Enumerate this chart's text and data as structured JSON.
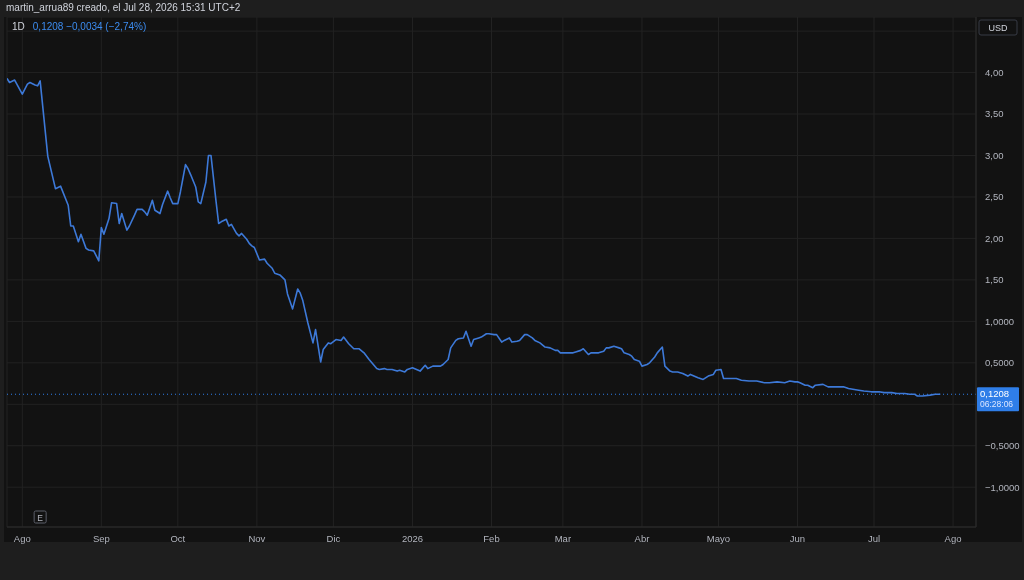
{
  "chart_data": {
    "type": "line",
    "title": "1D",
    "subtitle": "0,1208 −0,0034 (−2,74%)",
    "ylabel": "USD",
    "annotations": [
      "martin_arrua89 creado, el Jul 28, 2026 15:31 UTC+2",
      {
        "text": "E",
        "x": "2025-08-08"
      }
    ],
    "color": "#3d79d8",
    "marker": "none",
    "line_style": "solid",
    "grid": true,
    "xlim": [
      "2025-07-26",
      "2026-08-10"
    ],
    "xticks": [
      {
        "value": "2025-08-01",
        "label": "Ago"
      },
      {
        "value": "2025-09-01",
        "label": "Sep"
      },
      {
        "value": "2025-10-01",
        "label": "Oct"
      },
      {
        "value": "2025-11-01",
        "label": "Nov"
      },
      {
        "value": "2025-12-01",
        "label": "Dic"
      },
      {
        "value": "2026-01-01",
        "label": "2026"
      },
      {
        "value": "2026-02-01",
        "label": "Feb"
      },
      {
        "value": "2026-03-01",
        "label": "Mar"
      },
      {
        "value": "2026-04-01",
        "label": "Abr"
      },
      {
        "value": "2026-05-01",
        "label": "Mayo"
      },
      {
        "value": "2026-06-01",
        "label": "Jun"
      },
      {
        "value": "2026-07-01",
        "label": "Jul"
      },
      {
        "value": "2026-08-01",
        "label": "Ago"
      }
    ],
    "ylim": [
      -1.48,
      4.67
    ],
    "yticks": [
      {
        "value": 4.5,
        "label": null
      },
      {
        "value": 4,
        "label": "4,00"
      },
      {
        "value": 3.5,
        "label": "3,50"
      },
      {
        "value": 3,
        "label": "3,00"
      },
      {
        "value": 2.5,
        "label": "2,50"
      },
      {
        "value": 2,
        "label": "2,00"
      },
      {
        "value": 1.5,
        "label": "1,50"
      },
      {
        "value": 1,
        "label": "1,0000"
      },
      {
        "value": 0.5,
        "label": "0,5000"
      },
      {
        "value": 0,
        "label": null
      },
      {
        "value": -0.5,
        "label": "−0,5000"
      },
      {
        "value": -1,
        "label": "−1,0000"
      }
    ],
    "ref_lines": [
      {
        "axis": "y",
        "value": 0.1208,
        "label": "0,1208\n06:28:06",
        "color": "#2f7ee8",
        "line_style": "dotted"
      }
    ],
    "x": [
      "2025-07-26",
      "2025-07-27",
      "2025-07-29",
      "2025-08-01",
      "2025-08-03",
      "2025-08-04",
      "2025-08-06",
      "2025-08-07",
      "2025-08-08",
      "2025-08-11",
      "2025-08-14",
      "2025-08-16",
      "2025-08-19",
      "2025-08-20",
      "2025-08-21",
      "2025-08-23",
      "2025-08-24",
      "2025-08-26",
      "2025-08-27",
      "2025-08-29",
      "2025-08-31",
      "2025-09-01",
      "2025-09-02",
      "2025-09-04",
      "2025-09-05",
      "2025-09-07",
      "2025-09-08",
      "2025-09-09",
      "2025-09-11",
      "2025-09-12",
      "2025-09-14",
      "2025-09-15",
      "2025-09-17",
      "2025-09-18",
      "2025-09-19",
      "2025-09-21",
      "2025-09-22",
      "2025-09-24",
      "2025-09-25",
      "2025-09-27",
      "2025-09-28",
      "2025-09-29",
      "2025-10-01",
      "2025-10-02",
      "2025-10-04",
      "2025-10-05",
      "2025-10-06",
      "2025-10-08",
      "2025-10-09",
      "2025-10-10",
      "2025-10-12",
      "2025-10-13",
      "2025-10-14",
      "2025-10-16",
      "2025-10-17",
      "2025-10-18",
      "2025-10-20",
      "2025-10-21",
      "2025-10-22",
      "2025-10-24",
      "2025-10-25",
      "2025-10-26",
      "2025-10-28",
      "2025-10-29",
      "2025-10-30",
      "2025-10-31",
      "2025-11-02",
      "2025-11-04",
      "2025-11-05",
      "2025-11-07",
      "2025-11-08",
      "2025-11-10",
      "2025-11-12",
      "2025-11-13",
      "2025-11-15",
      "2025-11-17",
      "2025-11-18",
      "2025-11-19",
      "2025-11-21",
      "2025-11-23",
      "2025-11-24",
      "2025-11-26",
      "2025-11-27",
      "2025-11-29",
      "2025-11-30",
      "2025-12-02",
      "2025-12-04",
      "2025-12-05",
      "2025-12-07",
      "2025-12-09",
      "2025-12-11",
      "2025-12-13",
      "2025-12-15",
      "2025-12-18",
      "2025-12-19",
      "2025-12-21",
      "2025-12-22",
      "2025-12-24",
      "2025-12-26",
      "2025-12-27",
      "2025-12-29",
      "2025-12-30",
      "2026-01-01",
      "2026-01-04",
      "2026-01-06",
      "2026-01-07",
      "2026-01-09",
      "2026-01-12",
      "2026-01-13",
      "2026-01-15",
      "2026-01-16",
      "2026-01-18",
      "2026-01-19",
      "2026-01-21",
      "2026-01-22",
      "2026-01-24",
      "2026-01-25",
      "2026-01-27",
      "2026-01-28",
      "2026-01-30",
      "2026-01-31",
      "2026-02-02",
      "2026-02-03",
      "2026-02-05",
      "2026-02-06",
      "2026-02-08",
      "2026-02-09",
      "2026-02-11",
      "2026-02-12",
      "2026-02-14",
      "2026-02-15",
      "2026-02-17",
      "2026-02-18",
      "2026-02-20",
      "2026-02-22",
      "2026-02-24",
      "2026-02-26",
      "2026-02-27",
      "2026-02-28",
      "2026-03-02",
      "2026-03-05",
      "2026-03-06",
      "2026-03-08",
      "2026-03-09",
      "2026-03-11",
      "2026-03-12",
      "2026-03-14",
      "2026-03-15",
      "2026-03-17",
      "2026-03-18",
      "2026-03-19",
      "2026-03-21",
      "2026-03-23",
      "2026-03-24",
      "2026-03-25",
      "2026-03-27",
      "2026-03-28",
      "2026-03-29",
      "2026-03-31",
      "2026-04-01",
      "2026-04-03",
      "2026-04-04",
      "2026-04-06",
      "2026-04-07",
      "2026-04-09",
      "2026-04-10",
      "2026-04-12",
      "2026-04-13",
      "2026-04-15",
      "2026-04-17",
      "2026-04-19",
      "2026-04-20",
      "2026-04-23",
      "2026-04-25",
      "2026-04-27",
      "2026-04-29",
      "2026-04-30",
      "2026-05-02",
      "2026-05-03",
      "2026-05-05",
      "2026-05-08",
      "2026-05-10",
      "2026-05-13",
      "2026-05-16",
      "2026-05-19",
      "2026-05-21",
      "2026-05-24",
      "2026-05-27",
      "2026-05-29",
      "2026-05-31",
      "2026-06-01",
      "2026-06-02",
      "2026-06-04",
      "2026-06-05",
      "2026-06-07",
      "2026-06-08",
      "2026-06-11",
      "2026-06-13",
      "2026-06-16",
      "2026-06-19",
      "2026-06-21",
      "2026-06-25",
      "2026-06-27",
      "2026-06-30",
      "2026-07-03",
      "2026-07-05",
      "2026-07-08",
      "2026-07-10",
      "2026-07-13",
      "2026-07-15",
      "2026-07-17",
      "2026-07-18",
      "2026-07-20",
      "2026-07-23",
      "2026-07-25",
      "2026-07-27"
    ],
    "values": [
      3.93,
      3.88,
      3.91,
      3.74,
      3.86,
      3.88,
      3.85,
      3.84,
      3.9,
      2.99,
      2.6,
      2.63,
      2.4,
      2.15,
      2.15,
      1.96,
      2.05,
      1.88,
      1.86,
      1.85,
      1.73,
      2.13,
      2.05,
      2.24,
      2.43,
      2.42,
      2.18,
      2.3,
      2.1,
      2.15,
      2.28,
      2.35,
      2.35,
      2.32,
      2.28,
      2.46,
      2.34,
      2.3,
      2.41,
      2.57,
      2.49,
      2.42,
      2.42,
      2.56,
      2.89,
      2.84,
      2.77,
      2.62,
      2.44,
      2.42,
      2.68,
      3.0,
      3.0,
      2.44,
      2.18,
      2.2,
      2.23,
      2.15,
      2.17,
      2.06,
      2.03,
      2.06,
      1.99,
      1.94,
      1.91,
      1.89,
      1.74,
      1.75,
      1.7,
      1.64,
      1.58,
      1.56,
      1.5,
      1.33,
      1.15,
      1.39,
      1.34,
      1.25,
      0.98,
      0.74,
      0.9,
      0.51,
      0.66,
      0.74,
      0.73,
      0.78,
      0.77,
      0.81,
      0.73,
      0.67,
      0.67,
      0.62,
      0.54,
      0.43,
      0.42,
      0.43,
      0.42,
      0.42,
      0.4,
      0.41,
      0.39,
      0.42,
      0.44,
      0.4,
      0.47,
      0.43,
      0.46,
      0.46,
      0.48,
      0.54,
      0.68,
      0.77,
      0.79,
      0.8,
      0.88,
      0.7,
      0.78,
      0.8,
      0.81,
      0.85,
      0.85,
      0.84,
      0.84,
      0.75,
      0.77,
      0.8,
      0.75,
      0.76,
      0.77,
      0.84,
      0.84,
      0.8,
      0.77,
      0.74,
      0.69,
      0.68,
      0.65,
      0.65,
      0.62,
      0.62,
      0.62,
      0.63,
      0.65,
      0.67,
      0.6,
      0.62,
      0.62,
      0.62,
      0.64,
      0.68,
      0.68,
      0.7,
      0.68,
      0.67,
      0.62,
      0.6,
      0.58,
      0.54,
      0.52,
      0.46,
      0.48,
      0.5,
      0.57,
      0.62,
      0.69,
      0.46,
      0.4,
      0.39,
      0.39,
      0.37,
      0.34,
      0.36,
      0.32,
      0.3,
      0.34,
      0.36,
      0.41,
      0.42,
      0.31,
      0.31,
      0.31,
      0.29,
      0.28,
      0.28,
      0.26,
      0.26,
      0.27,
      0.26,
      0.28,
      0.27,
      0.27,
      0.26,
      0.23,
      0.23,
      0.2,
      0.23,
      0.24,
      0.21,
      0.21,
      0.21,
      0.19,
      0.17,
      0.16,
      0.15,
      0.15,
      0.14,
      0.14,
      0.13,
      0.13,
      0.12,
      0.12,
      0.1,
      0.1,
      0.11,
      0.12,
      0.12
    ]
  }
}
